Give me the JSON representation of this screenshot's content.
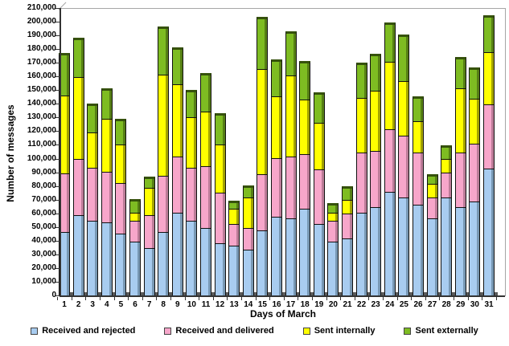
{
  "chart_data": {
    "type": "bar",
    "subtype": "stacked-vertical-3d",
    "title": "",
    "xlabel": "Days of March",
    "ylabel": "Number of messages",
    "ylim": [
      0,
      210000
    ],
    "ytick_step": 10000,
    "ytick_labels": [
      "0",
      "10,000",
      "20,000",
      "30,000",
      "40,000",
      "50,000",
      "60,000",
      "70,000",
      "80,000",
      "90,000",
      "100,000",
      "110,000",
      "120,000",
      "130,000",
      "140,000",
      "150,000",
      "160,000",
      "170,000",
      "180,000",
      "190,000",
      "200,000",
      "210,000"
    ],
    "grid": false,
    "legend_position": "bottom",
    "categories": [
      "1",
      "2",
      "3",
      "4",
      "5",
      "6",
      "7",
      "8",
      "9",
      "10",
      "11",
      "12",
      "13",
      "14",
      "15",
      "16",
      "17",
      "18",
      "19",
      "20",
      "21",
      "22",
      "23",
      "24",
      "25",
      "26",
      "27",
      "28",
      "29",
      "30",
      "31"
    ],
    "series": [
      {
        "name": "Received and rejected",
        "color": "#A8CCF0",
        "side_color": "#7898B4",
        "cap_color": "#4C637C",
        "values": [
          47000,
          59000,
          55000,
          54000,
          46000,
          40000,
          35000,
          47000,
          61000,
          55000,
          50000,
          39000,
          37000,
          34000,
          48000,
          58000,
          57000,
          64000,
          53000,
          40000,
          42000,
          61000,
          65000,
          76000,
          72000,
          67000,
          57000,
          72000,
          65000,
          69000,
          93000
        ]
      },
      {
        "name": "Received and delivered",
        "color": "#F7A6CA",
        "side_color": "#BC7C98",
        "cap_color": "#7E5266",
        "values": [
          43000,
          41000,
          39000,
          37000,
          37000,
          15000,
          24000,
          41000,
          41000,
          39000,
          45000,
          37000,
          16000,
          16000,
          41000,
          43000,
          45000,
          40000,
          40000,
          15000,
          18000,
          44000,
          41000,
          46000,
          45000,
          38000,
          15000,
          18000,
          40000,
          42000,
          47000
        ]
      },
      {
        "name": "Sent internally",
        "color": "#FFFF00",
        "side_color": "#A3A300",
        "cap_color": "#6B6B00",
        "values": [
          57000,
          60000,
          26000,
          39000,
          28000,
          6000,
          20000,
          74000,
          53000,
          37000,
          40000,
          35000,
          11000,
          22000,
          77000,
          45000,
          59000,
          40000,
          34000,
          6000,
          10000,
          40000,
          44000,
          49000,
          40000,
          23000,
          10000,
          10000,
          47000,
          33000,
          38000
        ]
      },
      {
        "name": "Sent externally",
        "color": "#7EBC22",
        "side_color": "#567F15",
        "cap_color": "#36520C",
        "values": [
          31000,
          29000,
          21000,
          22000,
          19000,
          10000,
          8000,
          35000,
          27000,
          20000,
          28000,
          23000,
          6000,
          9000,
          38000,
          27000,
          32000,
          28000,
          22000,
          7000,
          10000,
          26000,
          27000,
          29000,
          34000,
          18000,
          7000,
          10000,
          23000,
          23000,
          27000
        ]
      }
    ]
  }
}
